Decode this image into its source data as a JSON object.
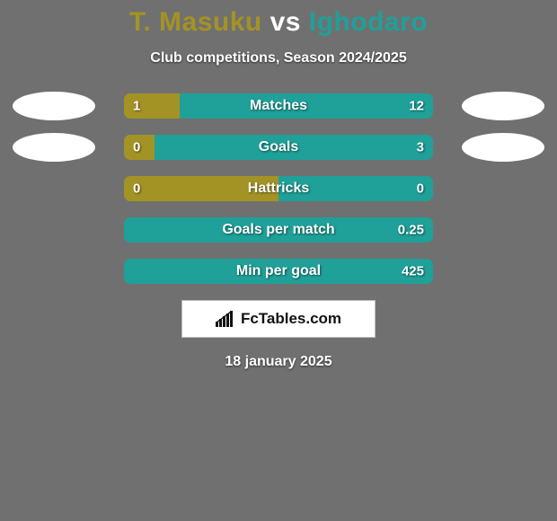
{
  "background_color": "#707070",
  "title": {
    "player_a": "T. Masuku",
    "vs": "vs",
    "player_b": "Ighodaro"
  },
  "title_colors": {
    "player_a": "#a39325",
    "vs": "#ffffff",
    "player_b": "#1fa099"
  },
  "title_fontsize": 30,
  "subtitle": "Club competitions, Season 2024/2025",
  "subtitle_fontsize": 16,
  "bar": {
    "track_width": 344,
    "track_height": 28,
    "border_radius": 7,
    "left_color": "#a39325",
    "right_color": "#1fa099",
    "label_color": "#ffffff",
    "label_fontsize": 15,
    "stat_fontsize": 16
  },
  "avatar": {
    "width": 92,
    "height": 32,
    "color": "#ffffff"
  },
  "stats": [
    {
      "name": "Matches",
      "left_val": "1",
      "right_val": "12",
      "left_pct": 18,
      "show_avatars": true
    },
    {
      "name": "Goals",
      "left_val": "0",
      "right_val": "3",
      "left_pct": 10,
      "show_avatars": true
    },
    {
      "name": "Hattricks",
      "left_val": "0",
      "right_val": "0",
      "left_pct": 50,
      "show_avatars": false
    },
    {
      "name": "Goals per match",
      "left_val": "",
      "right_val": "0.25",
      "left_pct": 0,
      "show_avatars": false
    },
    {
      "name": "Min per goal",
      "left_val": "",
      "right_val": "425",
      "left_pct": 0,
      "show_avatars": false
    }
  ],
  "brand": {
    "text": "FcTables.com",
    "box_bg": "#ffffff",
    "box_border": "#bdbdbd",
    "text_color": "#111111",
    "fontsize": 17
  },
  "date": "18 january 2025",
  "date_fontsize": 16
}
